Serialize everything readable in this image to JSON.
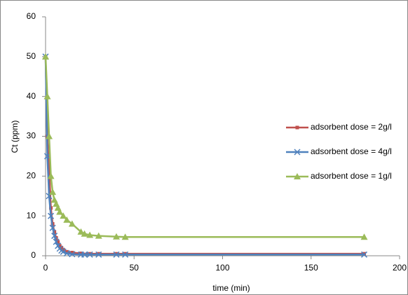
{
  "chart_data": {
    "type": "line",
    "x_label": "time (min)",
    "y_label": "Ct (ppm)",
    "xlim": [
      0,
      200
    ],
    "xticks": [
      0,
      50,
      100,
      150,
      200
    ],
    "ylim": [
      0,
      60
    ],
    "yticks": [
      0,
      10,
      20,
      30,
      40,
      50,
      60
    ],
    "grid": false,
    "legend": "right",
    "series": [
      {
        "name": "adsorbent dose = 2g/l",
        "color": "#c0504d",
        "marker": "square",
        "x": [
          0,
          1,
          2,
          3,
          4,
          5,
          6,
          7,
          8,
          9,
          10,
          12,
          15,
          20,
          25,
          30,
          40,
          45,
          180
        ],
        "values": [
          50,
          30,
          22,
          12,
          8,
          6,
          4.5,
          3.5,
          2.5,
          2,
          1.5,
          1,
          0.8,
          0.6,
          0.5,
          0.5,
          0.5,
          0.5,
          0.5
        ]
      },
      {
        "name": "adsorbent dose = 4g/l",
        "color": "#4f81bd",
        "marker": "x",
        "x": [
          0,
          1,
          2,
          3,
          4,
          5,
          6,
          7,
          8,
          9,
          10,
          12,
          15,
          20,
          22,
          25,
          30,
          40,
          45,
          180
        ],
        "values": [
          50,
          25,
          15,
          10,
          7,
          5,
          3.5,
          2.5,
          1.8,
          1.3,
          1,
          0.6,
          0.4,
          0.3,
          0.3,
          0.3,
          0.3,
          0.3,
          0.3,
          0.3
        ]
      },
      {
        "name": "adsorbent dose = 1g/l",
        "color": "#9bbb59",
        "marker": "triangle",
        "x": [
          0,
          1,
          2,
          3,
          4,
          5,
          6,
          7,
          8,
          10,
          12,
          15,
          20,
          22,
          25,
          30,
          40,
          45,
          180
        ],
        "values": [
          50,
          40,
          30,
          20,
          16,
          14,
          13,
          12,
          11,
          10,
          9,
          8,
          6,
          5.5,
          5.2,
          5,
          4.8,
          4.7,
          4.7
        ]
      }
    ]
  }
}
